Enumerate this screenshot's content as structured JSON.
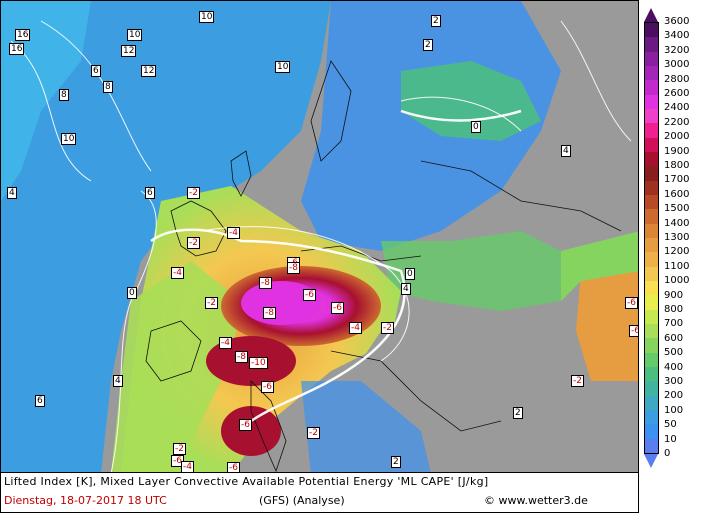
{
  "footer": {
    "title": "Lifted Index [K], Mixed Layer Convective Available Potential Energy 'ML CAPE' [J/kg]",
    "date": "Dienstag, 18-07-2017  18 UTC",
    "model": "(GFS)   (Analyse)",
    "copyright": "© www.wetter3.de"
  },
  "scale": {
    "ticks": [
      "3600",
      "3400",
      "3200",
      "3000",
      "2800",
      "2600",
      "2400",
      "2200",
      "2000",
      "1900",
      "1800",
      "1700",
      "1600",
      "1500",
      "1400",
      "1300",
      "1200",
      "1100",
      "1000",
      "900",
      "800",
      "700",
      "600",
      "500",
      "400",
      "300",
      "200",
      "100",
      "50",
      "10",
      "0"
    ],
    "colors": [
      "#4b0f62",
      "#6a1a80",
      "#8a1fa0",
      "#a426b8",
      "#c22acc",
      "#e032e0",
      "#f040c8",
      "#f02090",
      "#d0105a",
      "#a81030",
      "#8a1e1e",
      "#a03020",
      "#b84a28",
      "#cc6a30",
      "#dc8438",
      "#e69c40",
      "#eeb048",
      "#f4c850",
      "#f8e050",
      "#e8ee4c",
      "#c8e850",
      "#a8de58",
      "#86d460",
      "#66ca6a",
      "#4cbf7e",
      "#40b4a0",
      "#40a8c0",
      "#3c9ee0",
      "#3c92f0",
      "#5a7ef0"
    ]
  },
  "li_labels": [
    {
      "v": "16"
    },
    {
      "v": "16"
    },
    {
      "v": "10"
    },
    {
      "v": "10"
    },
    {
      "v": "12"
    },
    {
      "v": "12"
    },
    {
      "v": "10"
    },
    {
      "v": "10"
    },
    {
      "v": "8"
    },
    {
      "v": "8"
    },
    {
      "v": "6"
    },
    {
      "v": "6"
    },
    {
      "v": "4"
    },
    {
      "v": "4"
    },
    {
      "v": "4"
    },
    {
      "v": "2"
    },
    {
      "v": "2"
    },
    {
      "v": "0"
    },
    {
      "v": "0"
    },
    {
      "v": "0"
    },
    {
      "v": "-2"
    },
    {
      "v": "-2"
    },
    {
      "v": "-4"
    },
    {
      "v": "-4"
    },
    {
      "v": "-2"
    },
    {
      "v": "-8"
    },
    {
      "v": "-6"
    },
    {
      "v": "-8"
    },
    {
      "v": "-8"
    },
    {
      "v": "-6"
    },
    {
      "v": "-8"
    },
    {
      "v": "-10"
    },
    {
      "v": "-6"
    },
    {
      "v": "-4"
    },
    {
      "v": "-6"
    },
    {
      "v": "-2"
    },
    {
      "v": "-2"
    },
    {
      "v": "-6"
    },
    {
      "v": "-6"
    },
    {
      "v": "-4"
    },
    {
      "v": "-6"
    },
    {
      "v": "-2"
    },
    {
      "v": "-6"
    },
    {
      "v": "-6"
    },
    {
      "v": "-2"
    },
    {
      "v": "-4"
    },
    {
      "v": "2"
    },
    {
      "v": "6"
    },
    {
      "v": "4"
    },
    {
      "v": "2"
    }
  ]
}
